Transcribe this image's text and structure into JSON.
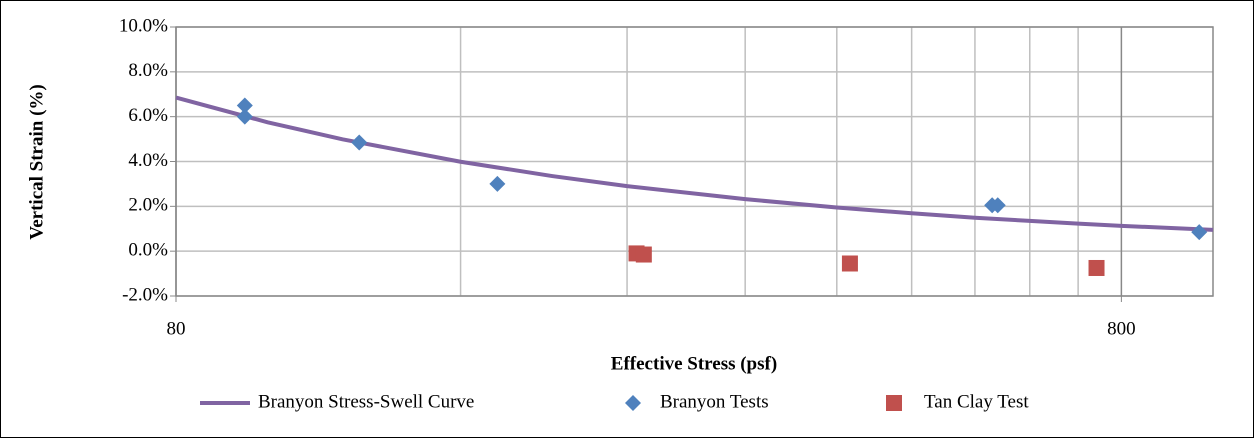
{
  "chart_data": {
    "type": "scatter-line",
    "xlabel": "Effective Stress (psf)",
    "ylabel": "Vertical Strain (%)",
    "xscale": "log",
    "xlim": [
      80,
      1000
    ],
    "xticks": [
      80,
      800
    ],
    "xminor": [
      160,
      240,
      320,
      400,
      480,
      560,
      640,
      720
    ],
    "ylim": [
      -2,
      10
    ],
    "yticks": [
      {
        "value": -2,
        "label": "-2.0%"
      },
      {
        "value": 0,
        "label": "0.0%"
      },
      {
        "value": 2,
        "label": "2.0%"
      },
      {
        "value": 4,
        "label": "4.0%"
      },
      {
        "value": 6,
        "label": "6.0%"
      },
      {
        "value": 8,
        "label": "8.0%"
      },
      {
        "value": 10,
        "label": "10.0%"
      }
    ],
    "grid": true,
    "series": [
      {
        "name": "Branyon Stress-Swell Curve",
        "kind": "line",
        "color": "#8064a2",
        "x": [
          80,
          100,
          120,
          160,
          200,
          240,
          320,
          400,
          480,
          560,
          640,
          720,
          800,
          1000
        ],
        "values": [
          6.85,
          5.75,
          4.99,
          3.99,
          3.35,
          2.9,
          2.32,
          1.95,
          1.69,
          1.49,
          1.35,
          1.23,
          1.13,
          0.95
        ]
      },
      {
        "name": "Branyon Tests",
        "kind": "diamond",
        "color": "#4f81bd",
        "x": [
          94.6,
          94.6,
          125,
          175,
          584,
          592,
          967
        ],
        "values": [
          6.5,
          6.0,
          4.85,
          3.0,
          2.05,
          2.05,
          0.85
        ]
      },
      {
        "name": "Tan Clay Test",
        "kind": "square",
        "color": "#c0504d",
        "x": [
          245.6,
          250,
          413,
          753
        ],
        "values": [
          -0.1,
          -0.15,
          -0.55,
          -0.75
        ]
      }
    ]
  }
}
